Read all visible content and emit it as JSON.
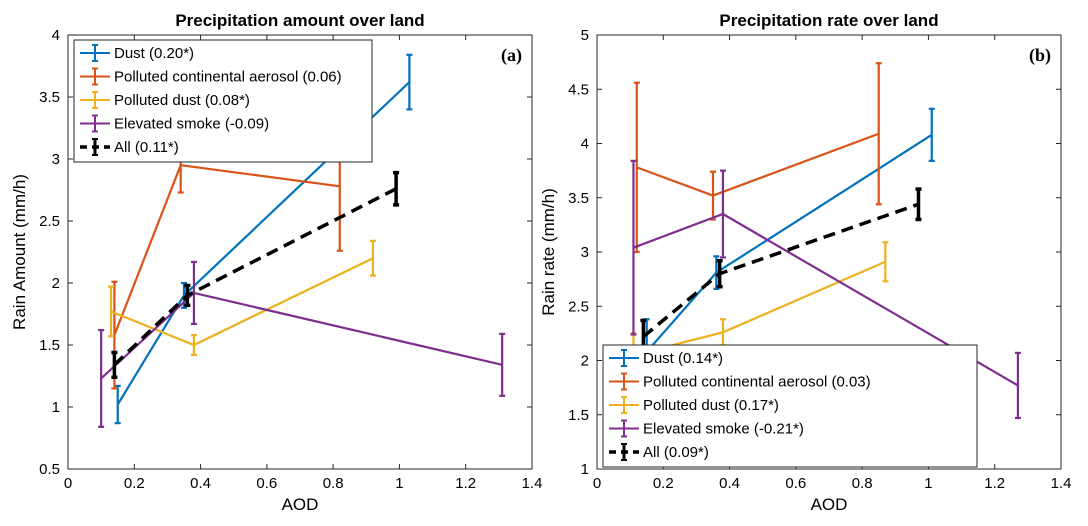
{
  "chart_data": [
    {
      "type": "line",
      "title": "Precipitation amount over land",
      "panel_label": "(a)",
      "xlabel": "AOD",
      "ylabel": "Rain Amount (mm/h)",
      "xlim": [
        0,
        1.4
      ],
      "ylim": [
        0.5,
        4
      ],
      "xticks": [
        0,
        0.2,
        0.4,
        0.6,
        0.8,
        1,
        1.2,
        1.4
      ],
      "xtick_labels": [
        "0",
        "0.2",
        "0.4",
        "0.6",
        "0.8",
        "1",
        "1.2",
        "1.4"
      ],
      "yticks": [
        0.5,
        1,
        1.5,
        2,
        2.5,
        3,
        3.5,
        4
      ],
      "ytick_labels": [
        "0.5",
        "1",
        "1.5",
        "2",
        "2.5",
        "3",
        "3.5",
        "4"
      ],
      "grid": false,
      "legend_position": "top-left",
      "series": [
        {
          "name": "Dust (0.20*)",
          "color": "#0072BD",
          "dashed": false,
          "x": [
            0.15,
            0.35,
            1.03
          ],
          "y": [
            1.02,
            1.9,
            3.62
          ],
          "err": [
            0.15,
            0.1,
            0.22
          ]
        },
        {
          "name": "Polluted continental aerosol (0.06)",
          "color": "#D95319",
          "dashed": false,
          "x": [
            0.14,
            0.34,
            0.82
          ],
          "y": [
            1.58,
            2.95,
            2.78
          ],
          "err": [
            0.43,
            0.22,
            0.52
          ]
        },
        {
          "name": "Polluted dust (0.08*)",
          "color": "#EDB120",
          "dashed": false,
          "x": [
            0.13,
            0.38,
            0.92
          ],
          "y": [
            1.77,
            1.5,
            2.2
          ],
          "err": [
            0.2,
            0.08,
            0.14
          ]
        },
        {
          "name": "Elevated smoke (-0.09)",
          "color": "#7E2F8E",
          "dashed": false,
          "x": [
            0.1,
            0.38,
            1.31
          ],
          "y": [
            1.23,
            1.92,
            1.34
          ],
          "err": [
            0.39,
            0.25,
            0.25
          ]
        },
        {
          "name": "All (0.11*)",
          "color": "#000000",
          "dashed": true,
          "x": [
            0.14,
            0.36,
            0.99
          ],
          "y": [
            1.34,
            1.9,
            2.76
          ],
          "err": [
            0.1,
            0.08,
            0.13
          ]
        }
      ]
    },
    {
      "type": "line",
      "title": "Precipitation rate over land",
      "panel_label": "(b)",
      "xlabel": "AOD",
      "ylabel": "Rain rate (mm/h)",
      "xlim": [
        0,
        1.4
      ],
      "ylim": [
        1,
        5
      ],
      "xticks": [
        0,
        0.2,
        0.4,
        0.6,
        0.8,
        1,
        1.2,
        1.4
      ],
      "xtick_labels": [
        "0",
        "0.2",
        "0.4",
        "0.6",
        "0.8",
        "1",
        "1.2",
        "1.4"
      ],
      "yticks": [
        1,
        1.5,
        2,
        2.5,
        3,
        3.5,
        4,
        4.5,
        5
      ],
      "ytick_labels": [
        "1",
        "1.5",
        "2",
        "2.5",
        "3",
        "3.5",
        "4",
        "4.5",
        "5"
      ],
      "grid": false,
      "legend_position": "bottom-left",
      "series": [
        {
          "name": "Dust (0.14*)",
          "color": "#0072BD",
          "dashed": false,
          "x": [
            0.15,
            0.36,
            1.01
          ],
          "y": [
            2.08,
            2.81,
            4.08
          ],
          "err": [
            0.3,
            0.15,
            0.24
          ]
        },
        {
          "name": "Polluted continental aerosol (0.03)",
          "color": "#D95319",
          "dashed": false,
          "x": [
            0.12,
            0.35,
            0.85
          ],
          "y": [
            3.78,
            3.52,
            4.09
          ],
          "err": [
            0.78,
            0.22,
            0.65
          ]
        },
        {
          "name": "Polluted dust (0.17*)",
          "color": "#EDB120",
          "dashed": false,
          "x": [
            0.11,
            0.38,
            0.87
          ],
          "y": [
            2.05,
            2.26,
            2.91
          ],
          "err": [
            0.2,
            0.12,
            0.18
          ]
        },
        {
          "name": "Elevated smoke (-0.21*)",
          "color": "#7E2F8E",
          "dashed": false,
          "x": [
            0.11,
            0.38,
            1.27
          ],
          "y": [
            3.04,
            3.35,
            1.77
          ],
          "err": [
            0.8,
            0.4,
            0.3
          ]
        },
        {
          "name": "All (0.09*)",
          "color": "#000000",
          "dashed": true,
          "x": [
            0.14,
            0.37,
            0.97
          ],
          "y": [
            2.22,
            2.8,
            3.44
          ],
          "err": [
            0.15,
            0.12,
            0.14
          ]
        }
      ]
    }
  ]
}
